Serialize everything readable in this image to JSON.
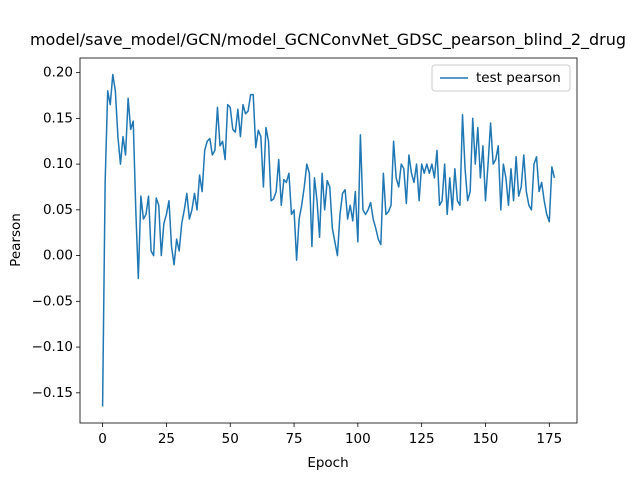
{
  "chart_data": {
    "type": "line",
    "title": "model/save_model/GCN/model_GCNConvNet_GDSC_pearson_blind_2_drug",
    "xlabel": "Epoch",
    "ylabel": "Pearson",
    "x": [
      0,
      1,
      2,
      3,
      4,
      5,
      6,
      7,
      8,
      9,
      10,
      11,
      12,
      13,
      14,
      15,
      16,
      17,
      18,
      19,
      20,
      21,
      22,
      23,
      24,
      25,
      26,
      27,
      28,
      29,
      30,
      31,
      32,
      33,
      34,
      35,
      36,
      37,
      38,
      39,
      40,
      41,
      42,
      43,
      44,
      45,
      46,
      47,
      48,
      49,
      50,
      51,
      52,
      53,
      54,
      55,
      56,
      57,
      58,
      59,
      60,
      61,
      62,
      63,
      64,
      65,
      66,
      67,
      68,
      69,
      70,
      71,
      72,
      73,
      74,
      75,
      76,
      77,
      78,
      79,
      80,
      81,
      82,
      83,
      84,
      85,
      86,
      87,
      88,
      89,
      90,
      91,
      92,
      93,
      94,
      95,
      96,
      97,
      98,
      99,
      100,
      101,
      102,
      103,
      104,
      105,
      106,
      107,
      108,
      109,
      110,
      111,
      112,
      113,
      114,
      115,
      116,
      117,
      118,
      119,
      120,
      121,
      122,
      123,
      124,
      125,
      126,
      127,
      128,
      129,
      130,
      131,
      132,
      133,
      134,
      135,
      136,
      137,
      138,
      139,
      140,
      141,
      142,
      143,
      144,
      145,
      146,
      147,
      148,
      149,
      150,
      151,
      152,
      153,
      154,
      155,
      156,
      157,
      158,
      159,
      160,
      161,
      162,
      163,
      164,
      165,
      166,
      167,
      168,
      169,
      170,
      171,
      172,
      173,
      174,
      175,
      176,
      177
    ],
    "series": [
      {
        "name": "test pearson",
        "color": "#1f77b4",
        "values": [
          -0.165,
          0.08,
          0.18,
          0.165,
          0.198,
          0.18,
          0.13,
          0.1,
          0.13,
          0.11,
          0.172,
          0.138,
          0.147,
          0.05,
          -0.025,
          0.065,
          0.04,
          0.045,
          0.065,
          0.005,
          0.0,
          0.063,
          0.055,
          0.0,
          0.035,
          0.045,
          0.06,
          0.01,
          -0.01,
          0.018,
          0.005,
          0.035,
          0.05,
          0.068,
          0.04,
          0.05,
          0.068,
          0.05,
          0.088,
          0.07,
          0.115,
          0.125,
          0.128,
          0.11,
          0.115,
          0.162,
          0.12,
          0.125,
          0.105,
          0.165,
          0.162,
          0.138,
          0.135,
          0.16,
          0.13,
          0.165,
          0.155,
          0.158,
          0.176,
          0.176,
          0.118,
          0.137,
          0.13,
          0.075,
          0.14,
          0.125,
          0.06,
          0.062,
          0.07,
          0.105,
          0.055,
          0.083,
          0.08,
          0.09,
          0.045,
          0.05,
          -0.005,
          0.04,
          0.055,
          0.075,
          0.1,
          0.09,
          0.01,
          0.085,
          0.06,
          0.02,
          0.09,
          0.05,
          0.082,
          0.075,
          0.03,
          0.015,
          0.0,
          0.045,
          0.068,
          0.072,
          0.04,
          0.055,
          0.038,
          0.07,
          0.015,
          0.132,
          0.05,
          0.045,
          0.05,
          0.058,
          0.04,
          0.03,
          0.018,
          0.012,
          0.09,
          0.045,
          0.048,
          0.055,
          0.125,
          0.085,
          0.075,
          0.1,
          0.095,
          0.057,
          0.11,
          0.09,
          0.08,
          0.1,
          0.06,
          0.1,
          0.09,
          0.1,
          0.09,
          0.1,
          0.085,
          0.115,
          0.055,
          0.06,
          0.1,
          0.045,
          0.085,
          0.05,
          0.095,
          0.06,
          0.055,
          0.154,
          0.095,
          0.06,
          0.07,
          0.15,
          0.1,
          0.14,
          0.085,
          0.12,
          0.06,
          0.1,
          0.145,
          0.1,
          0.105,
          0.12,
          0.05,
          0.1,
          0.085,
          0.055,
          0.095,
          0.06,
          0.108,
          0.065,
          0.075,
          0.11,
          0.07,
          0.055,
          0.05,
          0.1,
          0.108,
          0.07,
          0.08,
          0.06,
          0.045,
          0.037,
          0.097,
          0.085
        ]
      }
    ],
    "xlim": [
      -8.85,
      185.85
    ],
    "ylim": [
      -0.183,
      0.216
    ],
    "xticks": [
      0,
      25,
      50,
      75,
      100,
      125,
      150,
      175
    ],
    "yticks": [
      {
        "value": -0.15,
        "label": "−0.15"
      },
      {
        "value": -0.1,
        "label": "−0.10"
      },
      {
        "value": -0.05,
        "label": "−0.05"
      },
      {
        "value": 0,
        "label": "0.00"
      },
      {
        "value": 0.05,
        "label": "0.05"
      },
      {
        "value": 0.1,
        "label": "0.10"
      },
      {
        "value": 0.15,
        "label": "0.15"
      },
      {
        "value": 0.2,
        "label": "0.20"
      }
    ],
    "legend": "upper right",
    "grid": false
  }
}
